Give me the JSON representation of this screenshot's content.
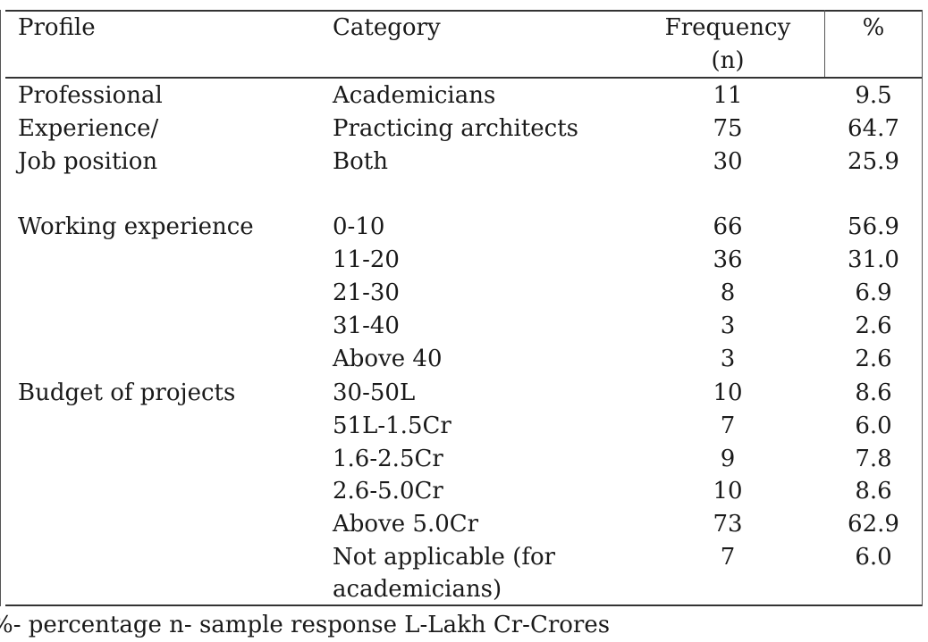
{
  "table": {
    "headers": {
      "profile": "Profile",
      "category": "Category",
      "frequency_line1": "Frequency",
      "frequency_line2": "(n)",
      "percent": "%"
    },
    "profiles": [
      {
        "line": "Professional"
      },
      {
        "line": "Experience/"
      },
      {
        "line": "Job position"
      },
      {
        "line": "Working experience"
      },
      {
        "line": "Budget of projects"
      }
    ],
    "rows": [
      {
        "category": "Academicians",
        "frequency": "11",
        "percent": "9.5"
      },
      {
        "category": "Practicing architects",
        "frequency": "75",
        "percent": "64.7"
      },
      {
        "category": "Both",
        "frequency": "30",
        "percent": "25.9"
      },
      {
        "category": "0-10",
        "frequency": "66",
        "percent": "56.9"
      },
      {
        "category": "11-20",
        "frequency": "36",
        "percent": "31.0"
      },
      {
        "category": "21-30",
        "frequency": "8",
        "percent": "6.9"
      },
      {
        "category": "31-40",
        "frequency": "3",
        "percent": "2.6"
      },
      {
        "category": "Above 40",
        "frequency": "3",
        "percent": "2.6"
      },
      {
        "category": "30-50L",
        "frequency": "10",
        "percent": "8.6"
      },
      {
        "category": "51L-1.5Cr",
        "frequency": "7",
        "percent": "6.0"
      },
      {
        "category": "1.6-2.5Cr",
        "frequency": "9",
        "percent": "7.8"
      },
      {
        "category": "2.6-5.0Cr",
        "frequency": "10",
        "percent": "8.6"
      },
      {
        "category": "Above 5.0Cr",
        "frequency": "73",
        "percent": "62.9"
      },
      {
        "category": "Not applicable (for",
        "category_line2": "academicians)",
        "frequency": "7",
        "percent": "6.0"
      }
    ]
  },
  "footnote": "%- percentage n- sample response L-Lakh Cr-Crores"
}
